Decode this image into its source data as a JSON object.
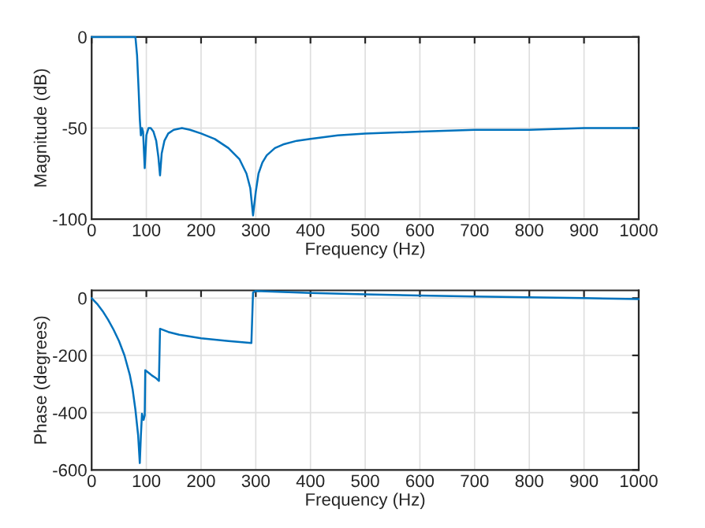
{
  "chart_data": [
    {
      "type": "line",
      "xlabel": "Frequency (Hz)",
      "ylabel": "Magnitude (dB)",
      "xlim": [
        0,
        1000
      ],
      "ylim": [
        -100,
        0
      ],
      "xticks": [
        0,
        100,
        200,
        300,
        400,
        500,
        600,
        700,
        800,
        900,
        1000
      ],
      "yticks": [
        -100,
        -50,
        0
      ],
      "grid": true,
      "series": [
        {
          "color": "#0072bd",
          "x": [
            0,
            40,
            80,
            83,
            86,
            88,
            90,
            92,
            94,
            97,
            100,
            104,
            108,
            113,
            118,
            122,
            125,
            128,
            133,
            140,
            150,
            165,
            180,
            200,
            225,
            250,
            270,
            283,
            290,
            295,
            300,
            305,
            312,
            320,
            335,
            350,
            375,
            400,
            450,
            500,
            600,
            700,
            800,
            900,
            1000
          ],
          "values": [
            0,
            0,
            0,
            -10,
            -30,
            -45,
            -54,
            -50,
            -52,
            -72,
            -54,
            -50,
            -50,
            -52,
            -57,
            -66,
            -76,
            -64,
            -57,
            -53,
            -51,
            -50,
            -51,
            -53,
            -56,
            -61,
            -67,
            -75,
            -83,
            -98,
            -85,
            -75,
            -69,
            -65,
            -61,
            -59,
            -57,
            -56,
            -54,
            -53,
            -52,
            -51,
            -51,
            -50,
            -50
          ]
        }
      ]
    },
    {
      "type": "line",
      "xlabel": "Frequency (Hz)",
      "ylabel": "Phase (degrees)",
      "xlim": [
        0,
        1000
      ],
      "ylim": [
        -600,
        27
      ],
      "xticks": [
        0,
        100,
        200,
        300,
        400,
        500,
        600,
        700,
        800,
        900,
        1000
      ],
      "yticks": [
        -600,
        -400,
        -200,
        0
      ],
      "grid": true,
      "series": [
        {
          "color": "#0072bd",
          "x": [
            0,
            10,
            20,
            30,
            40,
            50,
            60,
            70,
            75,
            80,
            85,
            88,
            90,
            92,
            94,
            95,
            97,
            98,
            105,
            110,
            118,
            123,
            125,
            140,
            160,
            200,
            250,
            292,
            295,
            300,
            400,
            500,
            600,
            700,
            800,
            900,
            1000
          ],
          "values": [
            0,
            -20,
            -45,
            -75,
            -110,
            -150,
            -200,
            -270,
            -320,
            -390,
            -480,
            -576,
            -480,
            -404,
            -420,
            -425,
            -410,
            -252,
            -262,
            -270,
            -280,
            -289,
            -107,
            -118,
            -128,
            -140,
            -150,
            -157,
            20,
            25,
            18,
            13,
            9,
            6,
            3,
            0,
            -3
          ]
        }
      ]
    }
  ]
}
